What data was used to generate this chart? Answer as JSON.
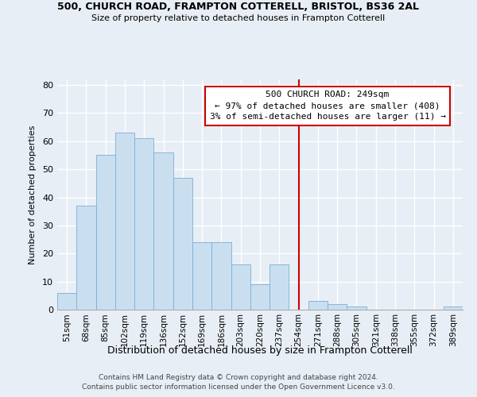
{
  "title": "500, CHURCH ROAD, FRAMPTON COTTERELL, BRISTOL, BS36 2AL",
  "subtitle": "Size of property relative to detached houses in Frampton Cotterell",
  "xlabel": "Distribution of detached houses by size in Frampton Cotterell",
  "ylabel": "Number of detached properties",
  "bar_labels": [
    "51sqm",
    "68sqm",
    "85sqm",
    "102sqm",
    "119sqm",
    "136sqm",
    "152sqm",
    "169sqm",
    "186sqm",
    "203sqm",
    "220sqm",
    "237sqm",
    "254sqm",
    "271sqm",
    "288sqm",
    "305sqm",
    "321sqm",
    "338sqm",
    "355sqm",
    "372sqm",
    "389sqm"
  ],
  "bar_values": [
    6,
    37,
    55,
    63,
    61,
    56,
    47,
    24,
    24,
    16,
    9,
    16,
    0,
    3,
    2,
    1,
    0,
    0,
    0,
    0,
    1
  ],
  "bar_color": "#c9dff0",
  "bar_edge_color": "#7aafd4",
  "ylim": [
    0,
    82
  ],
  "yticks": [
    0,
    10,
    20,
    30,
    40,
    50,
    60,
    70,
    80
  ],
  "vline_index": 12,
  "marker_label": "500 CHURCH ROAD: 249sqm",
  "annotation_line1": "← 97% of detached houses are smaller (408)",
  "annotation_line2": "3% of semi-detached houses are larger (11) →",
  "vline_color": "#cc0000",
  "annotation_box_color": "#ffffff",
  "annotation_box_edge": "#cc0000",
  "footer_line1": "Contains HM Land Registry data © Crown copyright and database right 2024.",
  "footer_line2": "Contains public sector information licensed under the Open Government Licence v3.0.",
  "background_color": "#e8eef5",
  "grid_color": "#ffffff",
  "plot_bg_color": "#dce6f0"
}
